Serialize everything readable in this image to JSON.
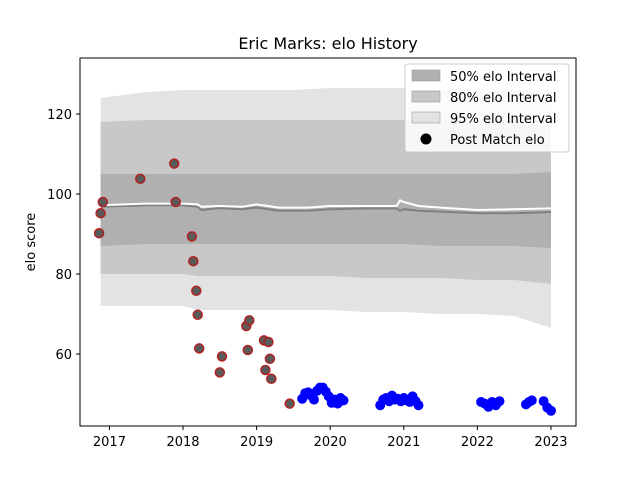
{
  "chart_data": {
    "type": "scatter",
    "title": "Eric Marks: elo History",
    "xlabel": "",
    "ylabel": "elo score",
    "xlim": [
      2016.6,
      2023.34
    ],
    "ylim": [
      42,
      134
    ],
    "x_ticks": [
      2017,
      2018,
      2019,
      2020,
      2021,
      2022,
      2023
    ],
    "y_ticks": [
      60,
      80,
      100,
      120
    ],
    "grid": false,
    "legend_position": "top-right",
    "legend": [
      {
        "label": "50% elo Interval",
        "kind": "band",
        "color": "#b0b0b0"
      },
      {
        "label": "80% elo Interval",
        "kind": "band",
        "color": "#c8c8c8"
      },
      {
        "label": "95% elo Interval",
        "kind": "band",
        "color": "#e3e3e3"
      },
      {
        "label": "Post Match elo",
        "kind": "point",
        "color": "#000000"
      }
    ],
    "colors": {
      "band95": "#e3e3e3",
      "band80": "#c8c8c8",
      "band50": "#b0b0b0",
      "median_line": "#808080",
      "mean_line": "#ffffff",
      "point_early_fill": "#5a5a5a",
      "point_early_edge": "#b22222",
      "point_late": "#0000ff"
    },
    "interval_x": [
      2016.88,
      2017.5,
      2018.0,
      2018.2,
      2018.5,
      2019.0,
      2019.5,
      2020.0,
      2020.5,
      2021.0,
      2021.5,
      2022.0,
      2022.5,
      2023.0
    ],
    "interval_lo95": [
      72,
      72,
      72,
      71,
      71,
      71,
      71,
      71,
      70.5,
      70.5,
      70,
      70,
      69.5,
      66.5
    ],
    "interval_lo80": [
      80,
      80,
      80,
      79.5,
      79.5,
      79.5,
      79.5,
      79.5,
      79,
      79,
      79,
      78.5,
      78.5,
      77.5
    ],
    "interval_lo50": [
      87,
      87.5,
      87.5,
      87.5,
      87.5,
      87.5,
      87.5,
      87.5,
      87.5,
      87.5,
      87,
      87,
      87,
      86.5
    ],
    "interval_hi50": [
      105,
      105,
      105,
      105,
      105,
      105,
      105,
      105,
      105,
      105,
      105,
      105,
      105,
      105.5
    ],
    "interval_hi80": [
      118,
      118.5,
      118.5,
      118.5,
      118.5,
      118.5,
      118.5,
      118.5,
      118.5,
      118.5,
      118.5,
      118.5,
      118.5,
      118.5
    ],
    "interval_hi95": [
      124,
      125.5,
      126,
      126,
      126,
      126,
      126,
      126.5,
      126.5,
      126.5,
      126,
      126,
      126,
      126
    ],
    "median_line": {
      "x": [
        2016.88,
        2017.5,
        2018.0,
        2018.2,
        2018.25,
        2018.5,
        2018.8,
        2019.0,
        2019.3,
        2019.7,
        2020.0,
        2020.5,
        2020.9,
        2020.95,
        2021.0,
        2021.2,
        2021.5,
        2022.0,
        2022.5,
        2023.0
      ],
      "y": [
        96.8,
        97.2,
        97.2,
        96.8,
        96.0,
        96.5,
        96.2,
        96.6,
        95.8,
        95.8,
        96.2,
        96.4,
        96.4,
        95.8,
        96.2,
        95.8,
        95.6,
        95.2,
        95.2,
        95.5
      ]
    },
    "mean_line": {
      "x": [
        2016.88,
        2017.5,
        2018.0,
        2018.2,
        2018.25,
        2018.5,
        2018.8,
        2019.0,
        2019.3,
        2019.7,
        2020.0,
        2020.5,
        2020.9,
        2020.95,
        2021.0,
        2021.2,
        2021.5,
        2022.0,
        2022.5,
        2023.0
      ],
      "y": [
        97.2,
        97.6,
        97.6,
        97.4,
        96.8,
        97.0,
        96.8,
        97.4,
        96.6,
        96.6,
        97.0,
        97.0,
        97.0,
        98.4,
        98.0,
        97.0,
        96.6,
        96.0,
        96.2,
        96.4
      ]
    },
    "points_early": {
      "x": [
        2016.86,
        2016.88,
        2016.91,
        2017.42,
        2017.88,
        2017.9,
        2018.12,
        2018.14,
        2018.18,
        2018.2,
        2018.22,
        2018.5,
        2018.53,
        2018.86,
        2018.88,
        2018.9,
        2019.1,
        2019.12,
        2019.16,
        2019.18,
        2019.2,
        2019.45
      ],
      "y": [
        90.2,
        95.2,
        98.0,
        103.8,
        107.6,
        98.0,
        89.4,
        83.2,
        75.8,
        69.8,
        61.4,
        55.4,
        59.4,
        67.0,
        61.0,
        68.4,
        63.4,
        56.0,
        63.0,
        58.8,
        53.8,
        47.6
      ]
    },
    "points_late": {
      "x": [
        2019.62,
        2019.66,
        2019.7,
        2019.74,
        2019.78,
        2019.82,
        2019.86,
        2019.9,
        2019.94,
        2019.98,
        2020.02,
        2020.06,
        2020.1,
        2020.14,
        2020.18,
        2020.68,
        2020.72,
        2020.76,
        2020.8,
        2020.84,
        2020.88,
        2020.92,
        2020.96,
        2021.0,
        2021.04,
        2021.08,
        2021.12,
        2021.16,
        2021.2,
        2022.05,
        2022.1,
        2022.15,
        2022.2,
        2022.25,
        2022.3,
        2022.66,
        2022.7,
        2022.74,
        2022.9,
        2022.95,
        2023.0
      ],
      "y": [
        48.8,
        50.2,
        50.4,
        49.6,
        48.6,
        50.8,
        51.6,
        51.6,
        50.6,
        49.4,
        47.8,
        48.6,
        47.6,
        49.0,
        48.4,
        47.2,
        48.6,
        49.0,
        48.2,
        49.6,
        48.6,
        48.8,
        48.2,
        49.0,
        48.4,
        48.0,
        49.4,
        48.2,
        47.2,
        48.0,
        47.6,
        46.8,
        48.0,
        47.2,
        48.2,
        47.4,
        48.0,
        48.4,
        48.2,
        46.6,
        45.8
      ]
    }
  }
}
